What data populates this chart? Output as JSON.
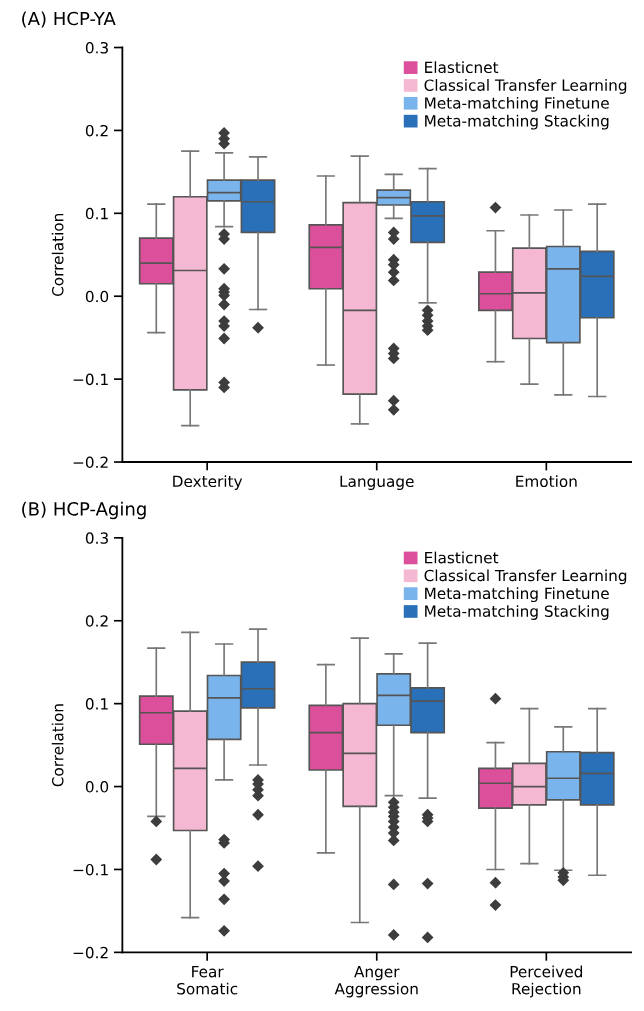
{
  "chart_data": [
    {
      "type": "box",
      "title": "(A) HCP-YA",
      "ylabel": "Correlation",
      "categories": [
        "Dexterity",
        "Language",
        "Emotion"
      ],
      "ylim": [
        -0.2,
        0.3
      ],
      "yticks": [
        {
          "value": -0.2,
          "label": "−0.2"
        },
        {
          "value": -0.1,
          "label": "−0.1"
        },
        {
          "value": 0,
          "label": "0.0"
        },
        {
          "value": 0.1,
          "label": "0.1"
        },
        {
          "value": 0.2,
          "label": "0.2"
        },
        {
          "value": 0.3,
          "label": "0.3"
        }
      ],
      "legend": "top right",
      "grid": false,
      "marker": "diamond",
      "series": [
        {
          "name": "Elasticnet",
          "color": "#dc4f9b",
          "boxes": [
            {
              "low": -0.044,
              "q1": 0.015,
              "median": 0.04,
              "q3": 0.07,
              "high": 0.111
            },
            {
              "low": -0.083,
              "q1": 0.009,
              "median": 0.059,
              "q3": 0.086,
              "high": 0.145
            },
            {
              "low": -0.079,
              "q1": -0.017,
              "median": 0.003,
              "q3": 0.029,
              "high": 0.079,
              "outliers": [
                0.107
              ]
            }
          ]
        },
        {
          "name": "Classical Transfer Learning",
          "color": "#f4b8d2",
          "boxes": [
            {
              "low": -0.156,
              "q1": -0.113,
              "median": 0.031,
              "q3": 0.12,
              "high": 0.175
            },
            {
              "low": -0.154,
              "q1": -0.118,
              "median": -0.017,
              "q3": 0.113,
              "high": 0.169
            },
            {
              "low": -0.106,
              "q1": -0.051,
              "median": 0.004,
              "q3": 0.058,
              "high": 0.098
            }
          ]
        },
        {
          "name": "Meta-matching Finetune",
          "color": "#7ab4ec",
          "boxes": [
            {
              "low": 0.084,
              "q1": 0.115,
              "median": 0.125,
              "q3": 0.14,
              "high": 0.173,
              "outliers": [
                0.197,
                0.19,
                0.184,
                0.075,
                0.069,
                0.033,
                0.009,
                0.005,
                0.001,
                -0.01,
                -0.03,
                -0.036,
                -0.051,
                -0.104,
                -0.11
              ]
            },
            {
              "low": 0.094,
              "q1": 0.11,
              "median": 0.119,
              "q3": 0.128,
              "high": 0.147,
              "outliers": [
                0.077,
                0.069,
                0.044,
                0.038,
                0.029,
                0.019,
                -0.063,
                -0.069,
                -0.075,
                -0.126,
                -0.137
              ]
            },
            {
              "low": -0.119,
              "q1": -0.056,
              "median": 0.033,
              "q3": 0.06,
              "high": 0.104
            }
          ]
        },
        {
          "name": "Meta-matching Stacking",
          "color": "#2a70b9",
          "boxes": [
            {
              "low": -0.016,
              "q1": 0.077,
              "median": 0.114,
              "q3": 0.14,
              "high": 0.168,
              "outliers": [
                -0.038
              ]
            },
            {
              "low": -0.008,
              "q1": 0.065,
              "median": 0.097,
              "q3": 0.114,
              "high": 0.154,
              "outliers": [
                -0.017,
                -0.023,
                -0.03,
                -0.036,
                -0.041
              ]
            },
            {
              "low": -0.121,
              "q1": -0.026,
              "median": 0.024,
              "q3": 0.054,
              "high": 0.111
            }
          ]
        }
      ]
    },
    {
      "type": "box",
      "title": "(B) HCP-Aging",
      "ylabel": "Correlation",
      "categories": [
        "Fear\nSomatic",
        "Anger\nAggression",
        "Perceived\nRejection"
      ],
      "ylim": [
        -0.2,
        0.3
      ],
      "yticks": [
        {
          "value": -0.2,
          "label": "−0.2"
        },
        {
          "value": -0.1,
          "label": "−0.1"
        },
        {
          "value": 0,
          "label": "0.0"
        },
        {
          "value": 0.1,
          "label": "0.1"
        },
        {
          "value": 0.2,
          "label": "0.2"
        },
        {
          "value": 0.3,
          "label": "0.3"
        }
      ],
      "legend": "top right",
      "grid": false,
      "marker": "diamond",
      "series": [
        {
          "name": "Elasticnet",
          "color": "#dc4f9b",
          "boxes": [
            {
              "low": -0.036,
              "q1": 0.051,
              "median": 0.089,
              "q3": 0.109,
              "high": 0.167,
              "outliers": [
                -0.042,
                -0.088
              ]
            },
            {
              "low": -0.08,
              "q1": 0.02,
              "median": 0.065,
              "q3": 0.098,
              "high": 0.147
            },
            {
              "low": -0.1,
              "q1": -0.026,
              "median": 0.004,
              "q3": 0.022,
              "high": 0.053,
              "outliers": [
                0.106,
                -0.116,
                -0.143
              ]
            }
          ]
        },
        {
          "name": "Classical Transfer Learning",
          "color": "#f4b8d2",
          "boxes": [
            {
              "low": -0.158,
              "q1": -0.053,
              "median": 0.022,
              "q3": 0.091,
              "high": 0.186
            },
            {
              "low": -0.164,
              "q1": -0.024,
              "median": 0.04,
              "q3": 0.1,
              "high": 0.179
            },
            {
              "low": -0.093,
              "q1": -0.022,
              "median": 0.0,
              "q3": 0.028,
              "high": 0.094
            }
          ]
        },
        {
          "name": "Meta-matching Finetune",
          "color": "#7ab4ec",
          "boxes": [
            {
              "low": 0.008,
              "q1": 0.057,
              "median": 0.107,
              "q3": 0.134,
              "high": 0.172,
              "outliers": [
                -0.064,
                -0.068,
                -0.105,
                -0.114,
                -0.136,
                -0.174
              ]
            },
            {
              "low": -0.011,
              "q1": 0.074,
              "median": 0.11,
              "q3": 0.136,
              "high": 0.16,
              "outliers": [
                -0.019,
                -0.025,
                -0.031,
                -0.036,
                -0.042,
                -0.049,
                -0.056,
                -0.065,
                -0.118,
                -0.179
              ]
            },
            {
              "low": -0.101,
              "q1": -0.016,
              "median": 0.01,
              "q3": 0.042,
              "high": 0.072,
              "outliers": [
                -0.104,
                -0.109,
                -0.113
              ]
            }
          ]
        },
        {
          "name": "Meta-matching Stacking",
          "color": "#2a70b9",
          "boxes": [
            {
              "low": 0.026,
              "q1": 0.095,
              "median": 0.118,
              "q3": 0.15,
              "high": 0.19,
              "outliers": [
                0.008,
                0.003,
                -0.004,
                -0.011,
                -0.034,
                -0.096
              ]
            },
            {
              "low": -0.014,
              "q1": 0.065,
              "median": 0.103,
              "q3": 0.119,
              "high": 0.173,
              "outliers": [
                -0.034,
                -0.038,
                -0.042,
                -0.117,
                -0.182
              ]
            },
            {
              "low": -0.107,
              "q1": -0.022,
              "median": 0.016,
              "q3": 0.041,
              "high": 0.094
            }
          ]
        }
      ]
    }
  ]
}
